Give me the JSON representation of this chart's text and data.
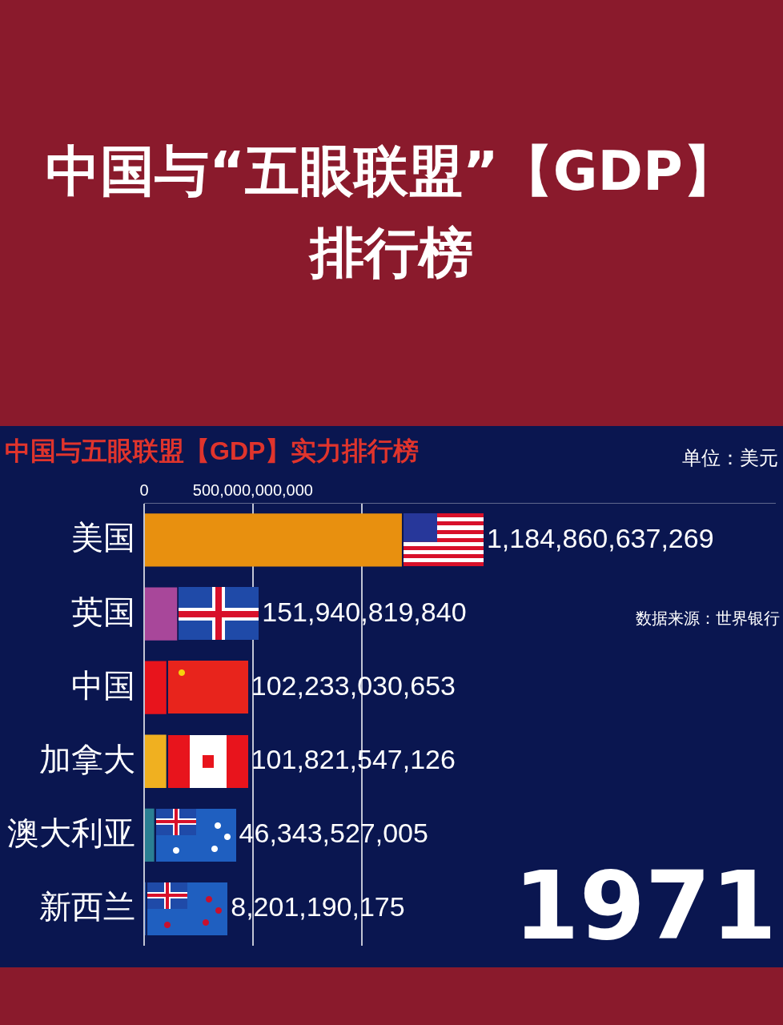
{
  "chart_data": {
    "type": "bar",
    "orientation": "horizontal",
    "title": "中国与“五眼联盟”【GDP】排行榜",
    "subtitle": "中国与五眼联盟【GDP】实力排行榜",
    "categories": [
      "美国",
      "英国",
      "中国",
      "加拿大",
      "澳大利亚",
      "新西兰"
    ],
    "values": [
      1184860637269,
      151940819840,
      102233030653,
      101821547126,
      46343527005,
      8201190175
    ],
    "colors": [
      "#e8900f",
      "#a8479a",
      "#e8141c",
      "#f0b020",
      "#2a7f93",
      "#2452a8"
    ],
    "xlim": [
      0,
      2900000000000
    ],
    "xticks": [
      0,
      {
        "value": 500000000000,
        "label": "500,000,000,000"
      },
      {
        "value": 1000000000000,
        "label": null
      }
    ],
    "grid": "x",
    "value_labels": [
      "1,184,860,637,269",
      "151,940,819,840",
      "102,233,030,653",
      "101,821,547,126",
      "46,343,527,005",
      "8,201,190,175"
    ],
    "annotations": [
      "单位：美元",
      "数据来源：世界银行",
      "1971"
    ]
  }
}
